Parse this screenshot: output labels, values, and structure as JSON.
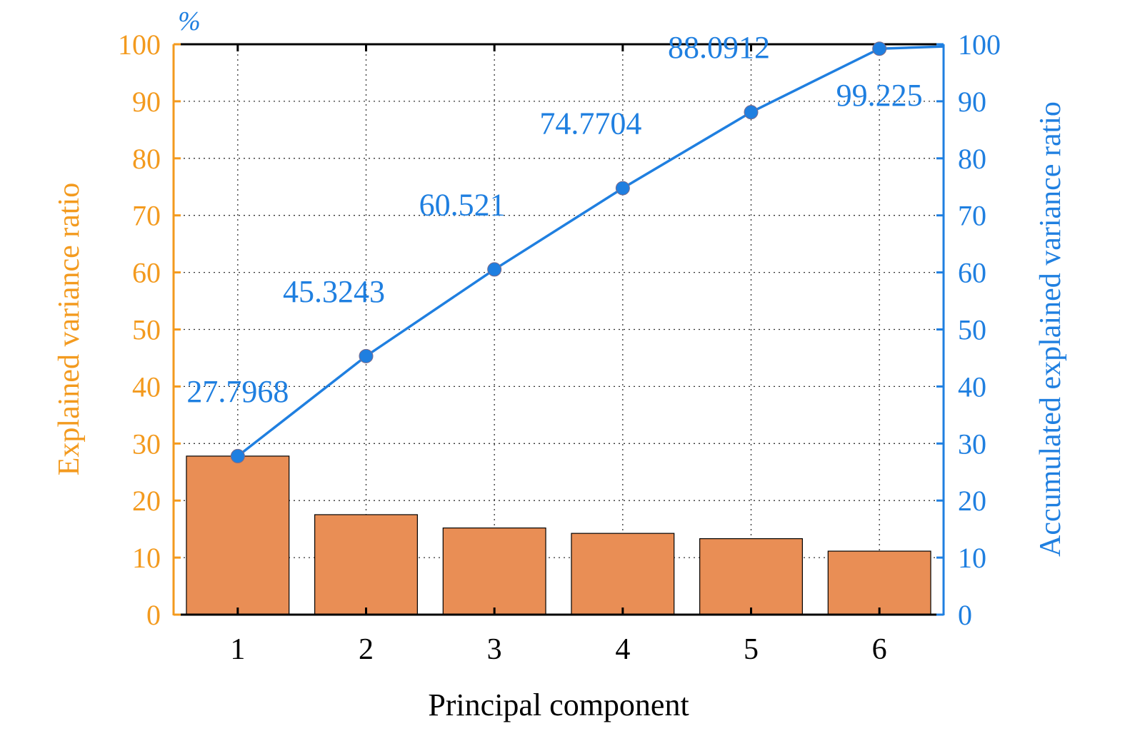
{
  "chart_data": {
    "type": "bar+line",
    "title": "",
    "xlabel": "Principal component",
    "ylabel_left": "Explained variance ratio",
    "ylabel_right": "Accumulated explained variance ratio",
    "unit_label": "%",
    "categories": [
      "1",
      "2",
      "3",
      "4",
      "5",
      "6"
    ],
    "ylim": [
      0,
      100
    ],
    "yticks": [
      "0",
      "10",
      "20",
      "30",
      "40",
      "50",
      "60",
      "70",
      "80",
      "90",
      "100"
    ],
    "grid": true,
    "series": [
      {
        "name": "Explained variance ratio",
        "type": "bar",
        "axis": "left",
        "values": [
          27.7968,
          17.5275,
          15.1967,
          14.2494,
          13.3208,
          11.1338
        ]
      },
      {
        "name": "Accumulated explained variance ratio",
        "type": "line",
        "axis": "right",
        "values": [
          27.7968,
          45.3243,
          60.521,
          74.7704,
          88.0912,
          99.225
        ],
        "trailing_value": 100
      }
    ],
    "data_labels": [
      "27.7968",
      "45.3243",
      "60.521",
      "74.7704",
      "88.0912",
      "99.225"
    ],
    "colors": {
      "bar": "#E98E55",
      "left_axis": "#F39A1E",
      "line": "#1F7FE0"
    }
  }
}
